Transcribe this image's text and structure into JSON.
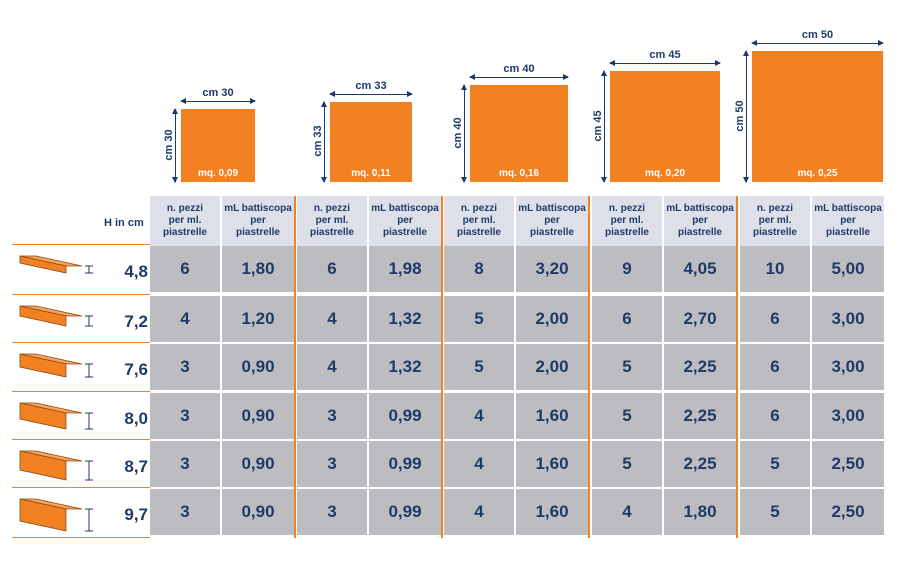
{
  "tiles": [
    {
      "width_label": "cm 30",
      "height_label": "cm 30",
      "area_label": "mq. 0,09"
    },
    {
      "width_label": "cm 33",
      "height_label": "cm 33",
      "area_label": "mq. 0,11"
    },
    {
      "width_label": "cm 40",
      "height_label": "cm 40",
      "area_label": "mq. 0,16"
    },
    {
      "width_label": "cm 45",
      "height_label": "cm 45",
      "area_label": "mq. 0,20"
    },
    {
      "width_label": "cm 50",
      "height_label": "cm 50",
      "area_label": "mq. 0,25"
    }
  ],
  "header": {
    "h_label": "H in cm",
    "col_pieces": [
      "n. pezzi",
      "per ml.",
      "piastrelle"
    ],
    "col_ml": [
      "mL battiscopa",
      "per",
      "piastrelle"
    ]
  },
  "heights": [
    "4,8",
    "7,2",
    "7,6",
    "8,0",
    "8,7",
    "9,7"
  ],
  "table": [
    [
      [
        "6",
        "1,80"
      ],
      [
        "6",
        "1,98"
      ],
      [
        "8",
        "3,20"
      ],
      [
        "9",
        "4,05"
      ],
      [
        "10",
        "5,00"
      ]
    ],
    [
      [
        "4",
        "1,20"
      ],
      [
        "4",
        "1,32"
      ],
      [
        "5",
        "2,00"
      ],
      [
        "6",
        "2,70"
      ],
      [
        "6",
        "3,00"
      ]
    ],
    [
      [
        "3",
        "0,90"
      ],
      [
        "4",
        "1,32"
      ],
      [
        "5",
        "2,00"
      ],
      [
        "5",
        "2,25"
      ],
      [
        "6",
        "3,00"
      ]
    ],
    [
      [
        "3",
        "0,90"
      ],
      [
        "3",
        "0,99"
      ],
      [
        "4",
        "1,60"
      ],
      [
        "5",
        "2,25"
      ],
      [
        "6",
        "3,00"
      ]
    ],
    [
      [
        "3",
        "0,90"
      ],
      [
        "3",
        "0,99"
      ],
      [
        "4",
        "1,60"
      ],
      [
        "5",
        "2,25"
      ],
      [
        "5",
        "2,50"
      ]
    ],
    [
      [
        "3",
        "0,90"
      ],
      [
        "3",
        "0,99"
      ],
      [
        "4",
        "1,60"
      ],
      [
        "4",
        "1,80"
      ],
      [
        "5",
        "2,50"
      ]
    ]
  ],
  "colors": {
    "accent": "#f28121",
    "text": "#1f3a68",
    "cell": "#bdbdc1",
    "header": "#dde0e8"
  }
}
